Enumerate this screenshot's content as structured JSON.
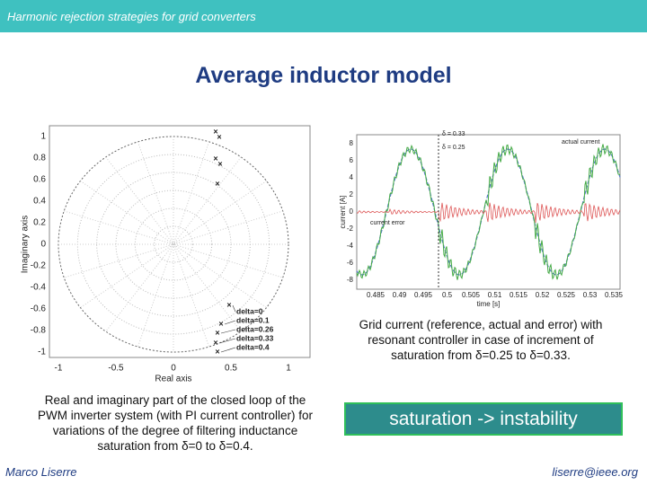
{
  "header": {
    "title": "Harmonic rejection strategies for grid converters"
  },
  "slide": {
    "title": "Average inductor model"
  },
  "left_figure": {
    "y_axis_label": "Imaginary axis",
    "x_axis_label": "Real axis",
    "xticks": [
      "-1",
      "-0.5",
      "0",
      "0.5",
      "1"
    ],
    "yticks": [
      "1",
      "0.8",
      "0.6",
      "0.4",
      "0.2",
      "0",
      "-0.2",
      "-0.4",
      "-0.6",
      "-0.8",
      "-1"
    ],
    "legend": [
      "delta=0",
      "delta=0.1",
      "delta=0.26",
      "delta=0.33",
      "delta=0.4"
    ],
    "caption": "Real and imaginary part of the closed loop of the PWM inverter system (with PI current controller) for variations of the degree of filtering inductance saturation from δ=0 to δ=0.4."
  },
  "right_figure": {
    "y_axis_label": "current [A]",
    "x_axis_label": "time [s]",
    "yticks": [
      "8",
      "6",
      "4",
      "2",
      "0",
      "-2",
      "-4",
      "-6",
      "-8"
    ],
    "xticks": [
      "0.485",
      "0.49",
      "0.495",
      "0.5",
      "0.505",
      "0.51",
      "0.515",
      "0.52",
      "0.525",
      "0.53",
      "0.535"
    ],
    "annotations": [
      "δ = 0.33",
      "δ = 0.25",
      "actual current",
      "current error"
    ],
    "caption": "Grid current (reference, actual and error) with resonant controller in case of  increment of saturation from δ=0.25 to δ=0.33."
  },
  "callout": "saturation -> instability",
  "footer": {
    "author": "Marco Liserre",
    "email": "liserre@ieee.org"
  }
}
